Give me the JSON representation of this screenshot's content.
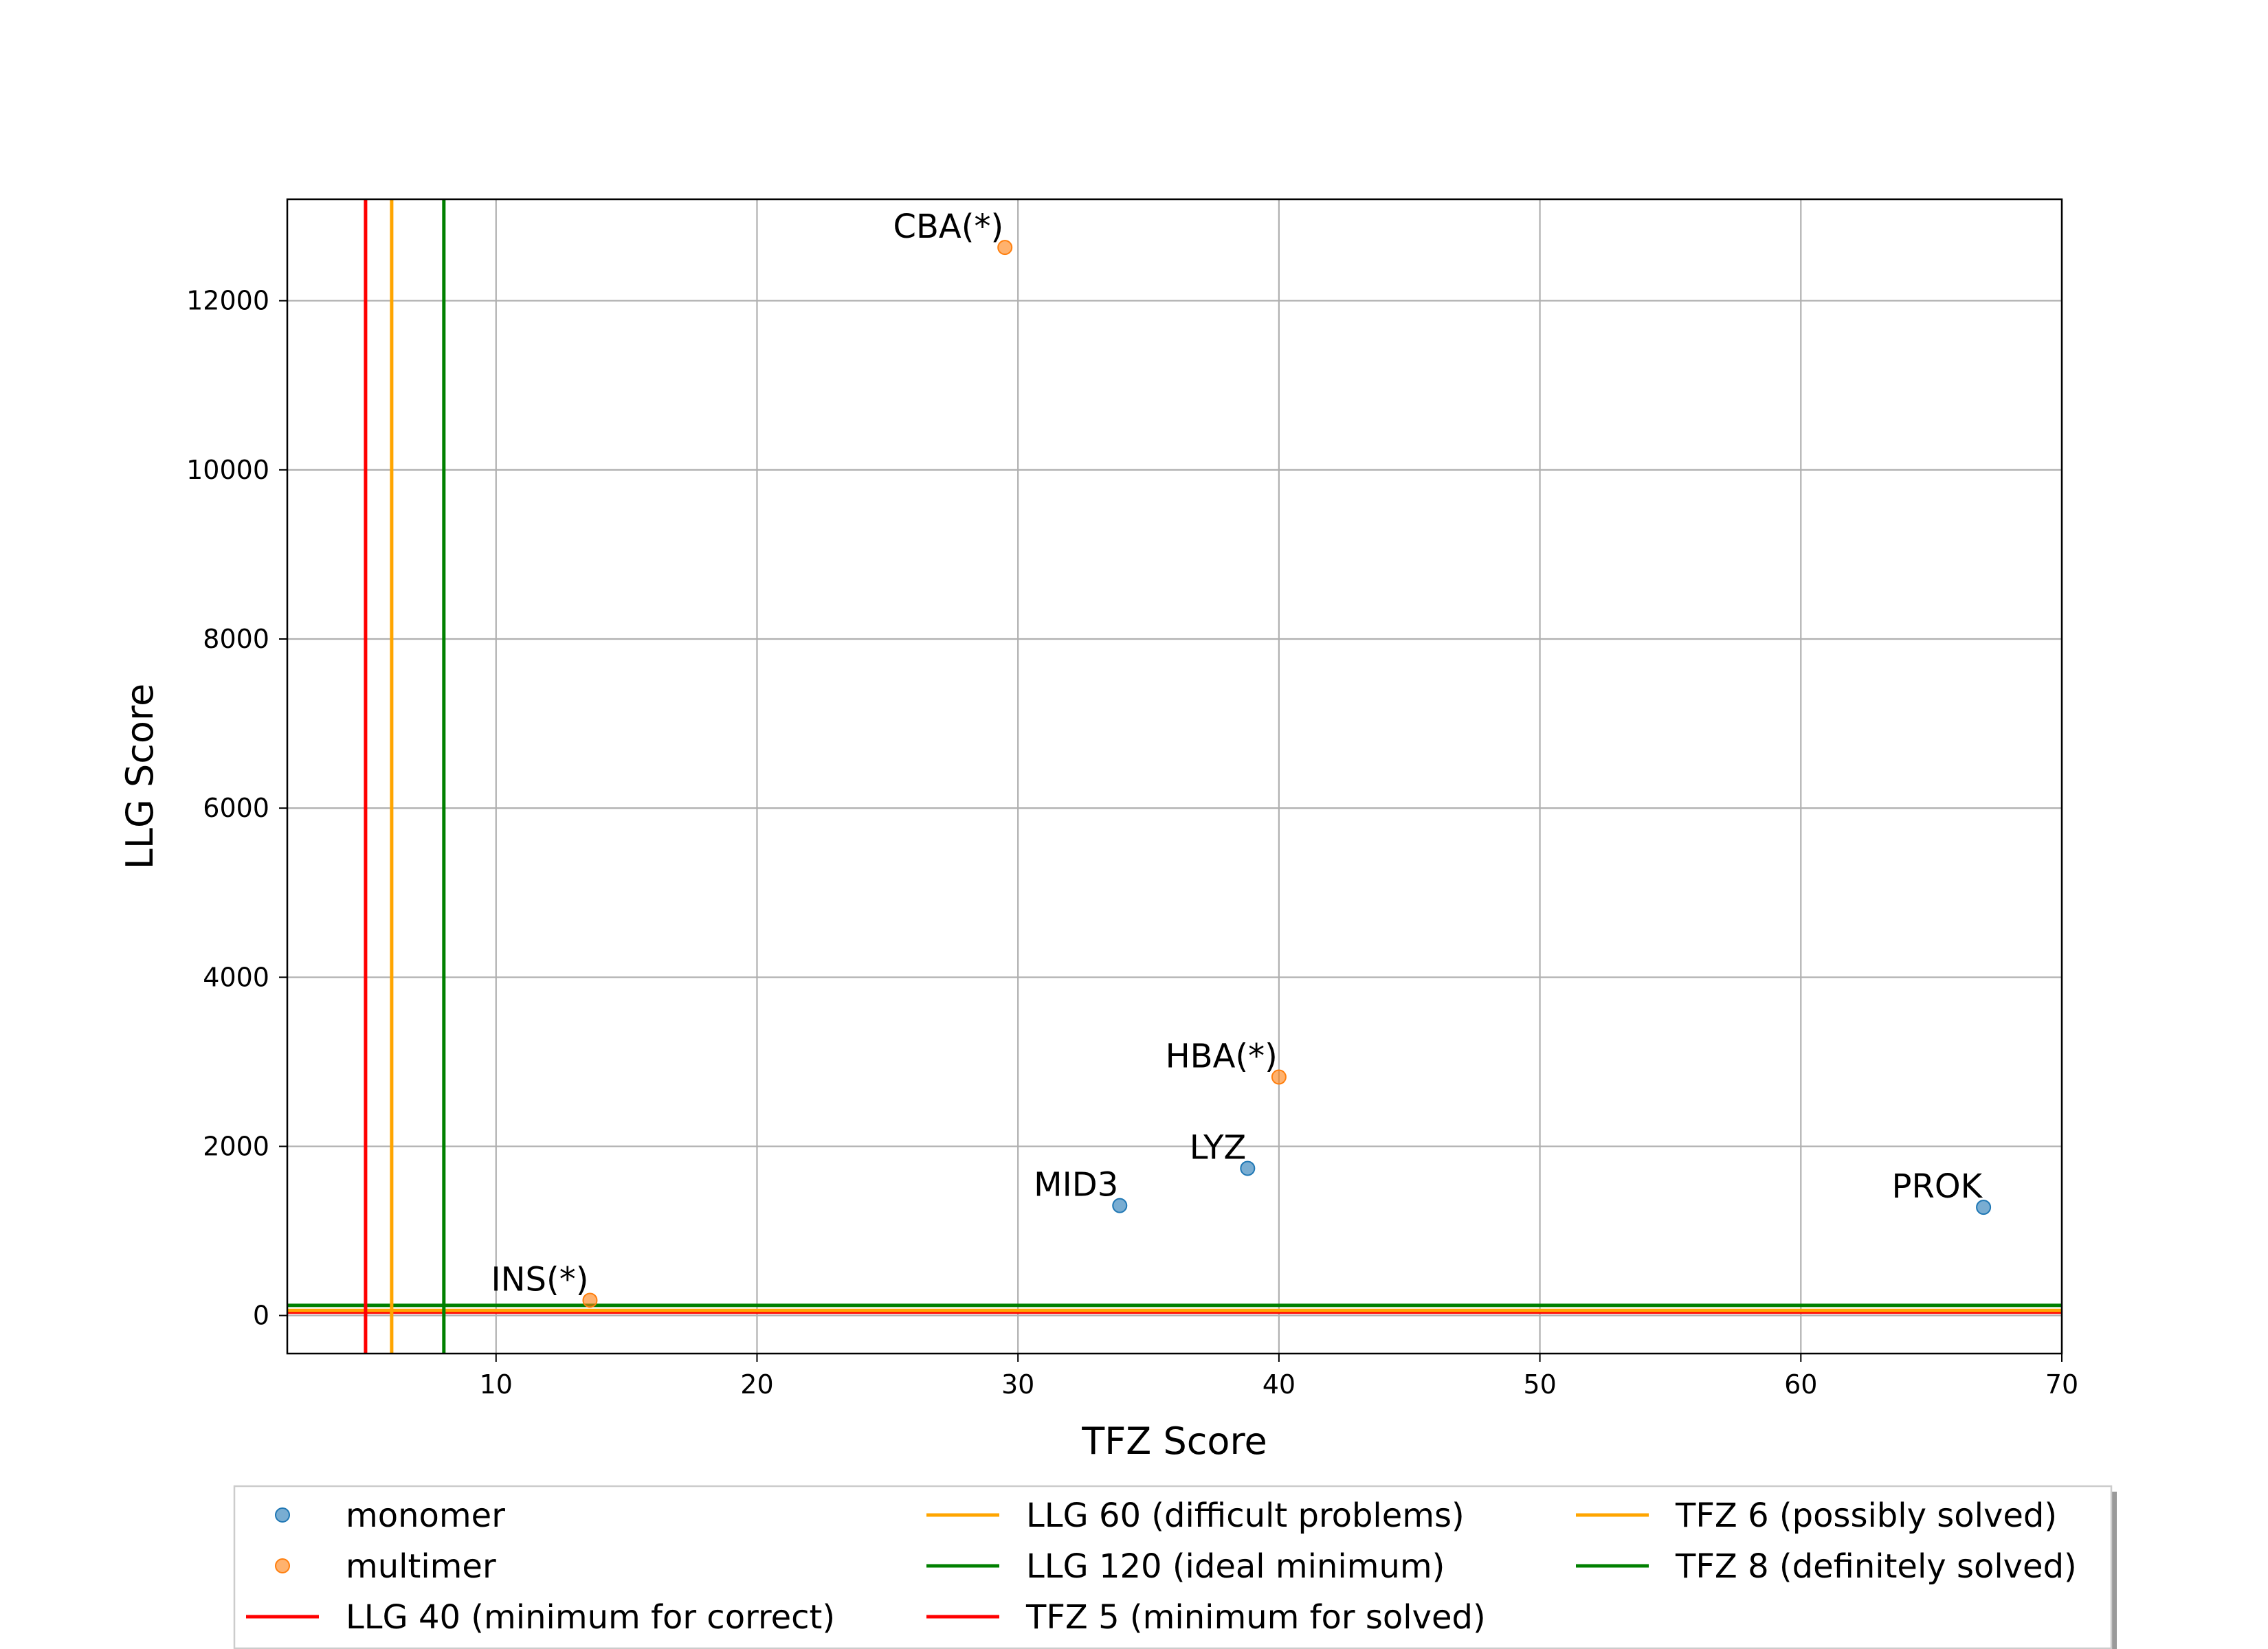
{
  "chart_data": {
    "type": "scatter",
    "xlabel": "TFZ Score",
    "ylabel": "LLG Score",
    "xlim": [
      2,
      70
    ],
    "ylim": [
      -450,
      13200
    ],
    "xticks": [
      10,
      20,
      30,
      40,
      50,
      60,
      70
    ],
    "yticks": [
      0,
      2000,
      4000,
      6000,
      8000,
      10000,
      12000
    ],
    "grid": true,
    "legend_placement": "below-center",
    "series": [
      {
        "name": "monomer",
        "color": "#1f77b4",
        "points": [
          {
            "x": 33.9,
            "y": 1300,
            "label": "MID3"
          },
          {
            "x": 38.8,
            "y": 1740,
            "label": "LYZ"
          },
          {
            "x": 67.0,
            "y": 1280,
            "label": "PROK"
          }
        ]
      },
      {
        "name": "multimer",
        "color": "#ff7f0e",
        "points": [
          {
            "x": 29.5,
            "y": 12630,
            "label": "CBA(*)"
          },
          {
            "x": 40.0,
            "y": 2820,
            "label": "HBA(*)"
          },
          {
            "x": 13.6,
            "y": 180,
            "label": "INS(*)"
          }
        ]
      }
    ],
    "hlines": [
      {
        "y": 40,
        "color": "#ff0000",
        "label": "LLG 40 (minimum for correct)"
      },
      {
        "y": 60,
        "color": "#ffa500",
        "label": "LLG 60 (difficult problems)"
      },
      {
        "y": 120,
        "color": "#008000",
        "label": "LLG 120 (ideal minimum)"
      }
    ],
    "vlines": [
      {
        "x": 5,
        "color": "#ff0000",
        "label": "TFZ 5 (minimum for solved)"
      },
      {
        "x": 6,
        "color": "#ffa500",
        "label": "TFZ 6 (possibly solved)"
      },
      {
        "x": 8,
        "color": "#008000",
        "label": "TFZ 8 (definitely solved)"
      }
    ],
    "legend": [
      {
        "kind": "marker",
        "label": "monomer",
        "color": "#1f77b4"
      },
      {
        "kind": "marker",
        "label": "multimer",
        "color": "#ff7f0e"
      },
      {
        "kind": "line",
        "label": "LLG 40 (minimum for correct)",
        "color": "#ff0000"
      },
      {
        "kind": "line",
        "label": "LLG 60 (difficult problems)",
        "color": "#ffa500"
      },
      {
        "kind": "line",
        "label": "LLG 120 (ideal minimum)",
        "color": "#008000"
      },
      {
        "kind": "line",
        "label": "TFZ 5 (minimum for solved)",
        "color": "#ff0000"
      },
      {
        "kind": "line",
        "label": "TFZ 6 (possibly solved)",
        "color": "#ffa500"
      },
      {
        "kind": "line",
        "label": "TFZ 8 (definitely solved)",
        "color": "#008000"
      }
    ]
  }
}
